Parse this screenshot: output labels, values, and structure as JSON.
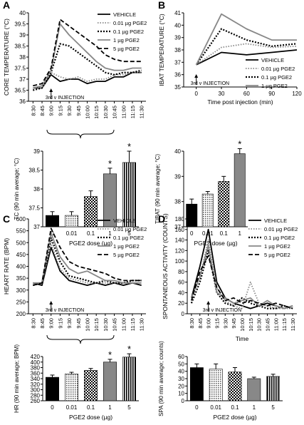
{
  "chart_data": [
    {
      "panel": "A",
      "type": "line",
      "ylabel": "CORE TEMPERATURE (°C)",
      "ylim": [
        36,
        40
      ],
      "yticks": [
        36,
        36.5,
        37,
        37.5,
        38,
        38.5,
        39,
        39.5,
        40
      ],
      "categories": [
        "8:30",
        "8:45",
        "9:00",
        "9:15",
        "9:30",
        "9:45",
        "10:00",
        "10:15",
        "10:30",
        "10:45",
        "11:00",
        "11:15",
        "11:30"
      ],
      "annotation": "3rd v INJECTION",
      "legend_position": "top-right",
      "series": [
        {
          "name": "VEHICLE",
          "color": "#000000",
          "dash": "solid",
          "values": [
            36.6,
            36.6,
            37.2,
            36.9,
            37.0,
            37.0,
            36.8,
            36.9,
            36.9,
            37.1,
            37.1,
            37.3,
            37.3
          ]
        },
        {
          "name": "0.01 µg PGE2",
          "color": "#888888",
          "dash": "dot",
          "values": [
            36.6,
            36.6,
            37.3,
            37.1,
            37.0,
            37.1,
            36.9,
            37.0,
            37.0,
            37.2,
            37.2,
            37.3,
            37.3
          ]
        },
        {
          "name": "0.1 µg PGE2",
          "color": "#000000",
          "dash": "dot-thick",
          "values": [
            36.5,
            36.6,
            37.3,
            38.6,
            38.5,
            38.2,
            37.9,
            37.6,
            37.3,
            37.2,
            37.3,
            37.3,
            37.4
          ]
        },
        {
          "name": "1 µg PGE2",
          "color": "#888888",
          "dash": "solid",
          "values": [
            36.6,
            36.7,
            37.4,
            39.5,
            39.0,
            38.6,
            38.2,
            37.8,
            37.5,
            37.4,
            37.4,
            37.5,
            37.5
          ]
        },
        {
          "name": "5 µg PGE2",
          "color": "#000000",
          "dash": "dash",
          "values": [
            36.7,
            36.8,
            37.5,
            39.7,
            39.4,
            39.1,
            38.8,
            38.5,
            38.1,
            37.9,
            37.8,
            37.8,
            37.8
          ]
        }
      ]
    },
    {
      "panel": "A-bar",
      "type": "bar",
      "ylabel": "TC (90 min average; °C)",
      "xlabel": "PGE2 dose (µg)",
      "ylim": [
        37,
        39
      ],
      "yticks": [
        37,
        37.5,
        38,
        38.5,
        39
      ],
      "categories": [
        "0",
        "0.01",
        "0.1",
        "1",
        "5"
      ],
      "values": [
        37.3,
        37.3,
        37.8,
        38.4,
        38.7
      ],
      "errors": [
        0.1,
        0.1,
        0.15,
        0.15,
        0.3
      ],
      "significant": [
        "",
        "",
        "",
        "*",
        "*"
      ]
    },
    {
      "panel": "B",
      "type": "line",
      "ylabel": "IBAT TEMPERATURE (°C)",
      "xlabel": "Time post injection (min)",
      "ylim": [
        35,
        41
      ],
      "yticks": [
        35,
        36,
        37,
        38,
        39,
        40,
        41
      ],
      "x": [
        0,
        30,
        60,
        90,
        120
      ],
      "xlim": [
        -15,
        120
      ],
      "annotation": "3rd v INJECTION",
      "legend_position": "bottom-right",
      "series": [
        {
          "name": "VEHICLE",
          "color": "#000000",
          "dash": "solid",
          "values": [
            36.8,
            37.8,
            37.6,
            37.8,
            38.0
          ]
        },
        {
          "name": "0.01 µg PGE2",
          "color": "#888888",
          "dash": "dot",
          "values": [
            36.8,
            38.2,
            38.5,
            38.2,
            38.3
          ]
        },
        {
          "name": "0.1 µg PGE2",
          "color": "#000000",
          "dash": "dot-thick",
          "values": [
            36.8,
            39.7,
            38.8,
            38.3,
            38.5
          ]
        },
        {
          "name": "1 µg PGE2",
          "color": "#888888",
          "dash": "solid",
          "values": [
            36.8,
            40.9,
            39.7,
            38.8,
            38.8
          ]
        }
      ]
    },
    {
      "panel": "B-bar",
      "type": "bar",
      "ylabel": "TIBAT (90 min average; °C)",
      "xlabel": "PGE2 dose (µg)",
      "ylim": [
        37,
        40
      ],
      "yticks": [
        37,
        38,
        39,
        40
      ],
      "categories": [
        "0",
        "0.01",
        "0.1",
        "1"
      ],
      "values": [
        37.9,
        38.3,
        38.8,
        39.9
      ],
      "errors": [
        0.2,
        0.1,
        0.2,
        0.2
      ],
      "significant": [
        "",
        "",
        "",
        "*"
      ]
    },
    {
      "panel": "C",
      "type": "line",
      "ylabel": "HEART RATE (BPM)",
      "ylim": [
        200,
        600
      ],
      "yticks": [
        200,
        250,
        300,
        350,
        400,
        450,
        500,
        550,
        600
      ],
      "categories": [
        "8:30",
        "8:45",
        "9:00",
        "9:15",
        "9:30",
        "9:45",
        "10:00",
        "10:15",
        "10:30",
        "10:45",
        "11:00",
        "11:15",
        "11:30"
      ],
      "annotation": "3rd v INJECTION",
      "legend_position": "top-right",
      "series": [
        {
          "name": "VEHICLE",
          "color": "#000000",
          "dash": "solid",
          "values": [
            330,
            320,
            480,
            380,
            340,
            330,
            320,
            330,
            320,
            330,
            320,
            330,
            320
          ]
        },
        {
          "name": "0.01 µg PGE2",
          "color": "#888888",
          "dash": "dot",
          "values": [
            330,
            330,
            500,
            390,
            350,
            340,
            330,
            330,
            330,
            330,
            330,
            330,
            330
          ]
        },
        {
          "name": "0.1 µg PGE2",
          "color": "#000000",
          "dash": "dot-thick",
          "values": [
            320,
            330,
            520,
            420,
            360,
            350,
            340,
            330,
            340,
            330,
            330,
            340,
            340
          ]
        },
        {
          "name": "1 µg PGE2",
          "color": "#888888",
          "dash": "solid",
          "values": [
            330,
            330,
            540,
            440,
            390,
            370,
            380,
            360,
            340,
            340,
            330,
            330,
            330
          ]
        },
        {
          "name": "5 µg PGE2",
          "color": "#000000",
          "dash": "dash",
          "values": [
            320,
            330,
            560,
            480,
            420,
            400,
            390,
            380,
            370,
            350,
            340,
            340,
            340
          ]
        }
      ]
    },
    {
      "panel": "C-bar",
      "type": "bar",
      "ylabel": "HR (90 min average; BPM)",
      "xlabel": "PGE2 dose (µg)",
      "ylim": [
        260,
        420
      ],
      "yticks": [
        260,
        280,
        300,
        320,
        340,
        360,
        380,
        400,
        420
      ],
      "categories": [
        "0",
        "0.01",
        "0.1",
        "1",
        "5"
      ],
      "values": [
        345,
        357,
        370,
        400,
        418
      ],
      "errors": [
        8,
        6,
        7,
        10,
        12
      ],
      "significant": [
        "",
        "",
        "",
        "*",
        "*"
      ]
    },
    {
      "panel": "D",
      "type": "line",
      "ylabel": "SPONTANEOUS ACTIVITY (COUNTS)",
      "xlabel": "Time",
      "ylim": [
        0,
        180
      ],
      "yticks": [
        0,
        20,
        40,
        60,
        80,
        100,
        120,
        140,
        160,
        180
      ],
      "categories": [
        "8:30",
        "8:45",
        "9:00",
        "9:15",
        "9:30",
        "9:45",
        "10:00",
        "10:15",
        "10:30",
        "10:45",
        "11:00",
        "11:15",
        "11:30"
      ],
      "annotation": "3rd v INJECTION",
      "legend_position": "top-right",
      "series": [
        {
          "name": "VEHICLE",
          "color": "#000000",
          "dash": "solid",
          "values": [
            30,
            90,
            160,
            60,
            30,
            20,
            15,
            10,
            15,
            20,
            15,
            10,
            15
          ]
        },
        {
          "name": "0.01 µg PGE2",
          "color": "#888888",
          "dash": "dot",
          "values": [
            30,
            70,
            140,
            50,
            25,
            15,
            10,
            60,
            20,
            15,
            10,
            10,
            10
          ]
        },
        {
          "name": "0.1 µg PGE2",
          "color": "#000000",
          "dash": "dot-thick",
          "values": [
            20,
            60,
            120,
            40,
            20,
            15,
            30,
            20,
            15,
            10,
            10,
            15,
            10
          ]
        },
        {
          "name": "1 µg PGE2",
          "color": "#888888",
          "dash": "solid",
          "values": [
            30,
            70,
            130,
            40,
            30,
            20,
            25,
            30,
            15,
            25,
            15,
            10,
            15
          ]
        },
        {
          "name": "5 µg PGE2",
          "color": "#000000",
          "dash": "dash",
          "values": [
            25,
            80,
            110,
            50,
            25,
            30,
            20,
            25,
            20,
            15,
            20,
            15,
            10
          ]
        }
      ]
    },
    {
      "panel": "D-bar",
      "type": "bar",
      "ylabel": "SPA (90 min average; counts)",
      "xlabel": "PGE2 dose (µg)",
      "ylim": [
        0,
        60
      ],
      "yticks": [
        0,
        10,
        20,
        30,
        40,
        50,
        60
      ],
      "categories": [
        "0",
        "0.01",
        "0.1",
        "1",
        "5"
      ],
      "values": [
        45,
        43,
        39,
        30,
        33
      ],
      "errors": [
        5,
        7,
        6,
        2,
        3
      ],
      "significant": [
        "",
        "",
        "",
        "",
        ""
      ]
    }
  ],
  "panel_labels": [
    "A",
    "B",
    "C",
    "D"
  ],
  "bar_fills": [
    "black",
    "light-dots",
    "black-check",
    "gray",
    "vertical-stripes"
  ]
}
